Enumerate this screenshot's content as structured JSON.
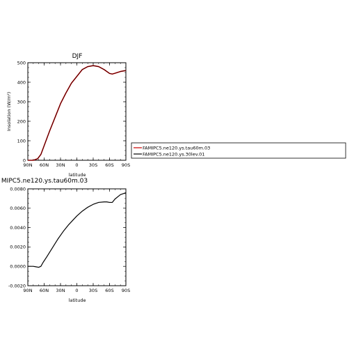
{
  "chart_data": [
    {
      "type": "line",
      "title": "DJF",
      "xlabel": "latitude",
      "ylabel": "Insolation (W/m²)",
      "xlim": [
        90,
        -90
      ],
      "ylim": [
        0,
        500
      ],
      "xticks": [
        90,
        60,
        30,
        0,
        -30,
        -60,
        -90
      ],
      "xticklabels": [
        "90N",
        "60N",
        "30N",
        "0",
        "30S",
        "60S",
        "90S"
      ],
      "yticks": [
        0,
        100,
        200,
        300,
        400,
        500
      ],
      "yticklabels": [
        "0",
        "100",
        "200",
        "300",
        "400",
        "500"
      ],
      "grid": false,
      "legend_placement": "right",
      "colors": {
        "series_a": "#cc0000",
        "series_b": "#000000"
      },
      "series": [
        {
          "name": "FAMIPC5.ne120.ys.tau60m.03",
          "x": [
            90,
            80,
            72,
            66,
            60,
            50,
            40,
            30,
            20,
            10,
            0,
            -10,
            -20,
            -30,
            -40,
            -50,
            -60,
            -65,
            -70,
            -80,
            -90
          ],
          "values": [
            0,
            0,
            8,
            30,
            75,
            150,
            220,
            290,
            345,
            395,
            430,
            465,
            480,
            485,
            480,
            465,
            445,
            442,
            446,
            455,
            460
          ]
        },
        {
          "name": "FAMIPC5.ne120.ys.30lev.01",
          "x": [
            90,
            80,
            72,
            66,
            60,
            50,
            40,
            30,
            20,
            10,
            0,
            -10,
            -20,
            -30,
            -40,
            -50,
            -60,
            -65,
            -70,
            -80,
            -90
          ],
          "values": [
            0,
            0,
            8,
            30,
            75,
            150,
            220,
            290,
            345,
            395,
            430,
            465,
            480,
            485,
            480,
            465,
            445,
            442,
            446,
            455,
            460
          ]
        }
      ]
    },
    {
      "type": "line",
      "title": "MIPC5.ne120.ys.tau60m.03",
      "xlabel": "latitude",
      "ylabel": "",
      "xlim": [
        90,
        -90
      ],
      "ylim": [
        -0.002,
        0.008
      ],
      "xticks": [
        90,
        60,
        30,
        0,
        -30,
        -60,
        -90
      ],
      "xticklabels": [
        "90N",
        "60N",
        "30N",
        "0",
        "30S",
        "60S",
        "90S"
      ],
      "yticks": [
        -0.002,
        0.0,
        0.002,
        0.004,
        0.006,
        0.008
      ],
      "yticklabels": [
        "-0.0020",
        "0.0000",
        "0.0020",
        "0.0040",
        "0.0060",
        "0.0080"
      ],
      "grid": false,
      "colors": {
        "series_a": "#000000"
      },
      "series": [
        {
          "x": [
            90,
            80,
            75,
            70,
            66,
            62,
            55,
            45,
            35,
            25,
            15,
            5,
            0,
            -10,
            -20,
            -30,
            -40,
            -50,
            -55,
            -60,
            -65,
            -70,
            -80,
            -90
          ],
          "values": [
            0,
            0,
            -5e-05,
            -0.0001,
            0.0,
            0.0004,
            0.001,
            0.0019,
            0.0028,
            0.0036,
            0.0043,
            0.0049,
            0.0052,
            0.0057,
            0.0061,
            0.0064,
            0.0066,
            0.00665,
            0.00665,
            0.0066,
            0.0066,
            0.00695,
            0.0074,
            0.0076
          ]
        }
      ]
    }
  ]
}
